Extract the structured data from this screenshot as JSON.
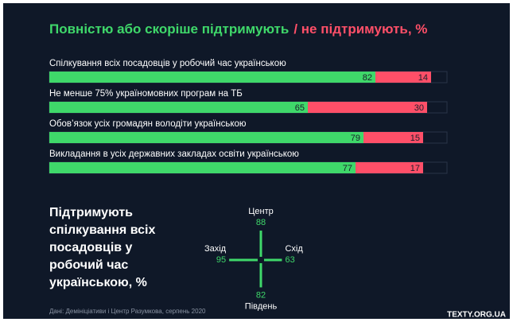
{
  "chart_data": [
    {
      "type": "stacked-hbar",
      "title": {
        "support": "Повністю або скоріше підтримують",
        "oppose": "/ не підтримують, %"
      },
      "categories": [
        "Спілкування всіх посадовців у робочий час українською",
        "Не менше 75% україномовних програм на ТБ",
        "Обов’язок усіх громадян володіти українською",
        "Викладання в усіх державних закладах освіти українською"
      ],
      "series": [
        {
          "name": "Повністю або скоріше підтримують",
          "color": "#3fd86a",
          "values": [
            82,
            65,
            79,
            77
          ]
        },
        {
          "name": "не підтримують",
          "color": "#ff4f68",
          "values": [
            14,
            30,
            15,
            17
          ]
        }
      ],
      "xlim": [
        0,
        100
      ]
    },
    {
      "type": "compass",
      "title_lines": [
        "Підтримують",
        "спілкування всіх",
        "посадовців у",
        "робочий час",
        "українською, %"
      ],
      "color": "#3fd86a",
      "regions": [
        {
          "name": "Центр",
          "value": 88,
          "direction": "north"
        },
        {
          "name": "Захід",
          "value": 95,
          "direction": "west"
        },
        {
          "name": "Схід",
          "value": 63,
          "direction": "east"
        },
        {
          "name": "Південь",
          "value": 82,
          "direction": "south"
        }
      ]
    }
  ],
  "source": "Дані: Демініціативи і Центр Разумкова, серпень 2020",
  "brand": "TEXTY.ORG.UA"
}
